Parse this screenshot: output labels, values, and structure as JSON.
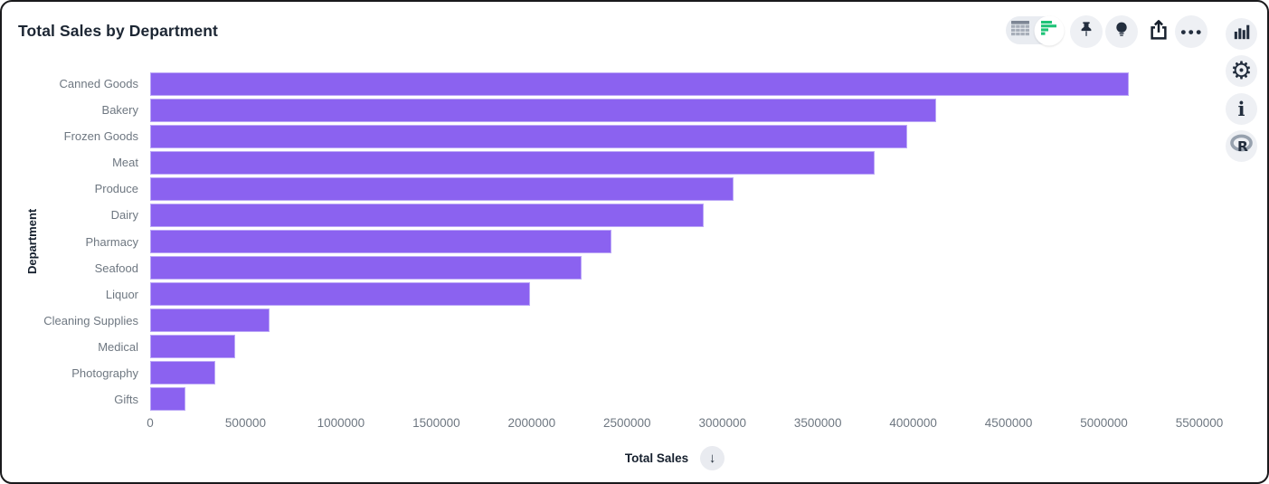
{
  "window": {
    "title": "Total Sales by Department"
  },
  "colors": {
    "bar": "#8b62f0",
    "bar_border": "#bca8f7",
    "accent_green": "#1ec377",
    "icon_dark": "#232e3e",
    "axis_text": "#6e7781",
    "title_text": "#1c2633",
    "button_bg": "#eef0f4"
  },
  "toolbar": {
    "view_toggle": {
      "options": [
        {
          "name": "table-view",
          "icon": "table-icon",
          "selected": false
        },
        {
          "name": "chart-view",
          "icon": "bar-chart-icon",
          "selected": true
        }
      ]
    },
    "buttons": [
      {
        "name": "pin",
        "icon": "pin-icon"
      },
      {
        "name": "insights",
        "icon": "lightbulb-icon"
      },
      {
        "name": "share",
        "icon": "share-icon"
      },
      {
        "name": "more-options",
        "icon": "ellipsis-icon",
        "label": "•••"
      }
    ]
  },
  "side_panel": {
    "buttons": [
      {
        "name": "chart-type",
        "icon": "column-chart-icon"
      },
      {
        "name": "settings",
        "icon": "gear-icon",
        "glyph": "⚙"
      },
      {
        "name": "info",
        "icon": "info-icon",
        "glyph": "i"
      },
      {
        "name": "r-language",
        "icon": "r-logo-icon"
      }
    ]
  },
  "chart_data": {
    "type": "bar",
    "orientation": "horizontal",
    "title": "Total Sales by Department",
    "xlabel": "Total Sales",
    "ylabel": "Department",
    "sort": "descending",
    "sort_icon": "↓",
    "grid": false,
    "legend": false,
    "categories": [
      "Canned Goods",
      "Bakery",
      "Frozen Goods",
      "Meat",
      "Produce",
      "Dairy",
      "Pharmacy",
      "Seafood",
      "Liquor",
      "Cleaning Supplies",
      "Medical",
      "Photography",
      "Gifts"
    ],
    "values": [
      5130000,
      4120000,
      3970000,
      3800000,
      3060000,
      2900000,
      2420000,
      2260000,
      1990000,
      625000,
      445000,
      340000,
      185000
    ],
    "xlim": [
      0,
      5500000
    ],
    "xticks": [
      0,
      500000,
      1000000,
      1500000,
      2000000,
      2500000,
      3000000,
      3500000,
      4000000,
      4500000,
      5000000,
      5500000
    ],
    "bar_color": "#8b62f0"
  }
}
